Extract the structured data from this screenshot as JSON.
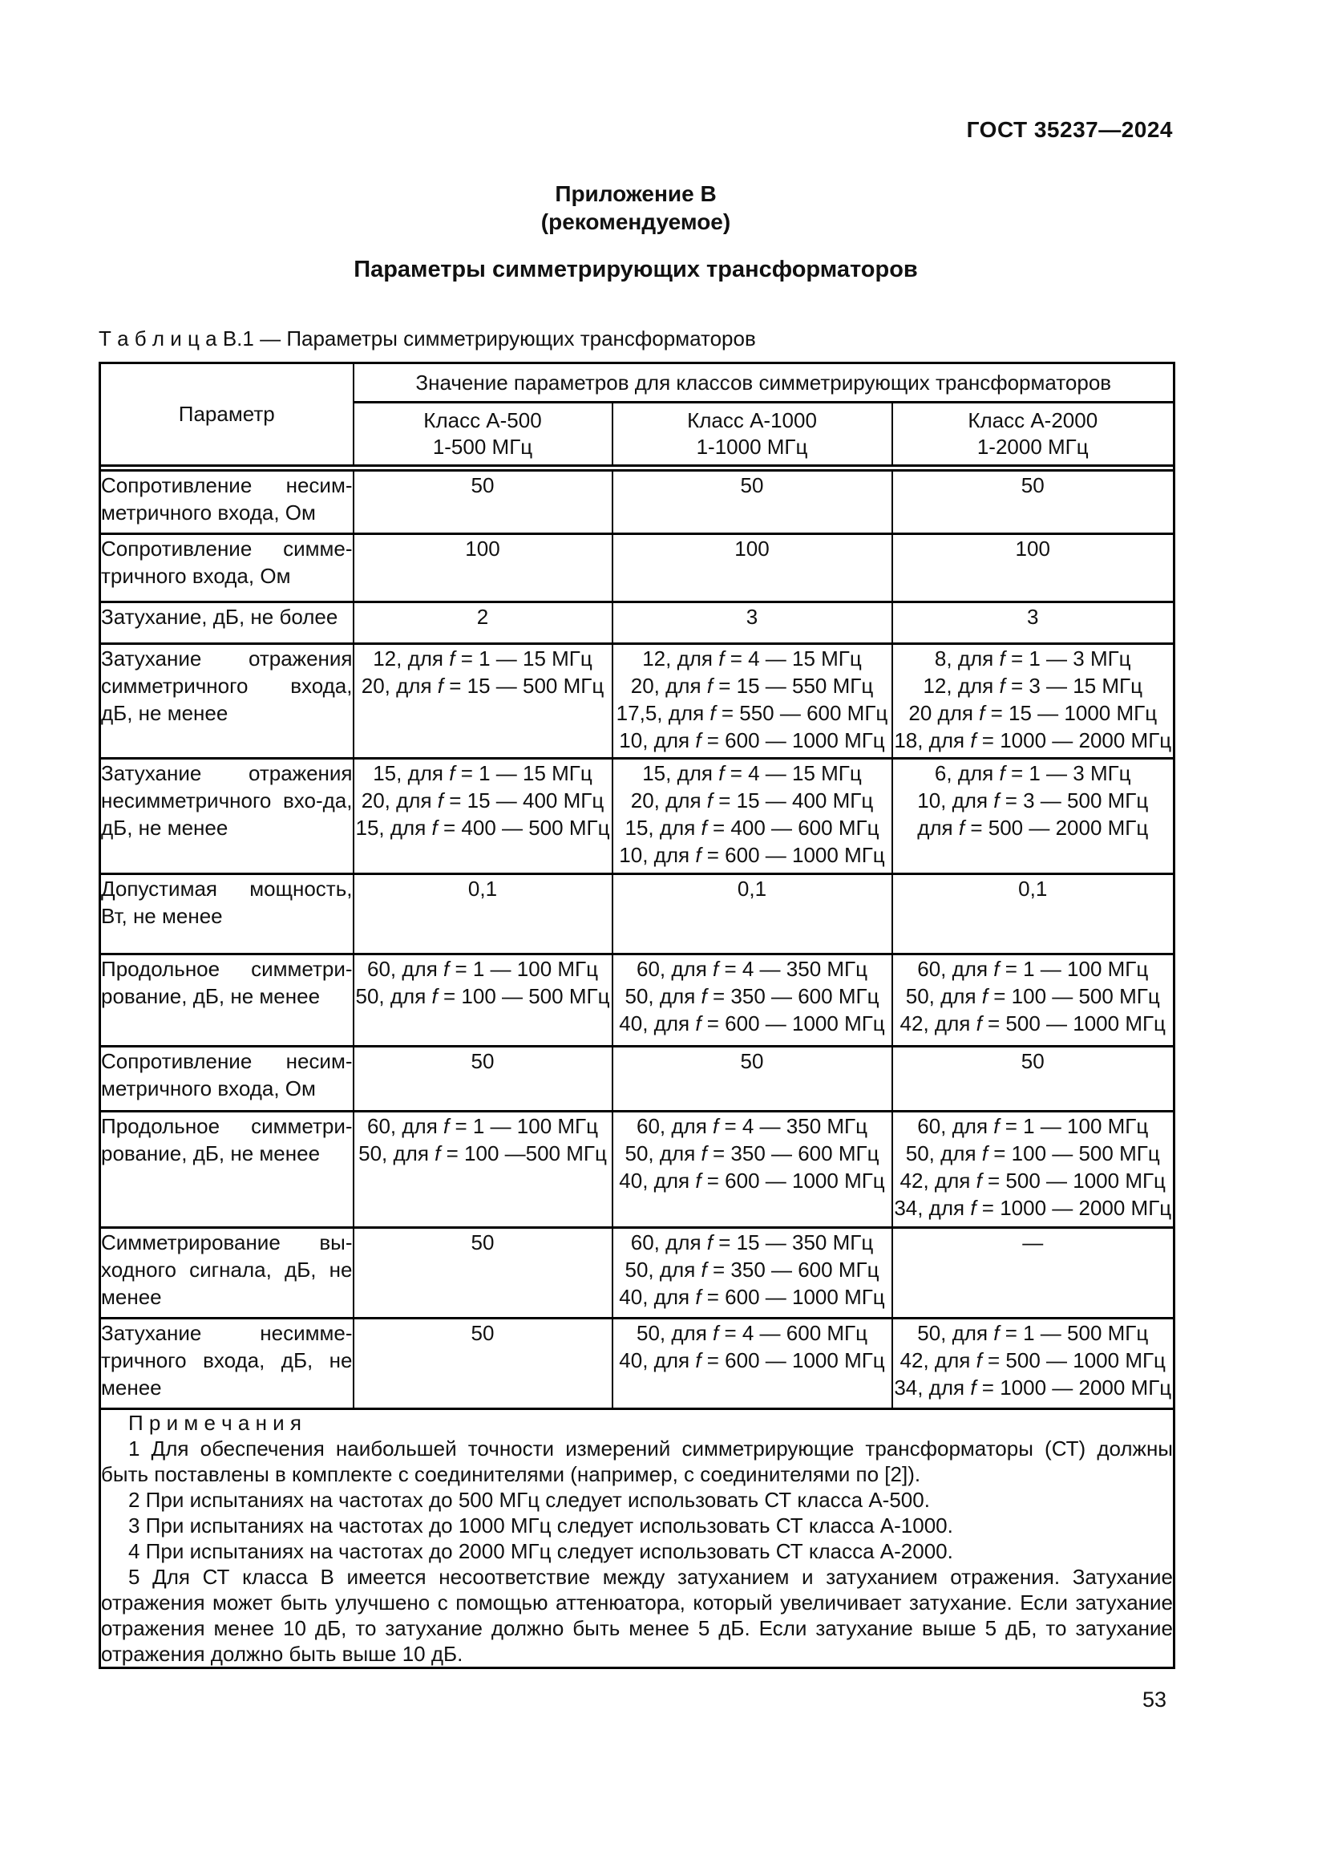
{
  "page": {
    "doc_number": "ГОСТ 35237—2024",
    "page_number": "53"
  },
  "annex": {
    "label": "Приложение В",
    "type": "(рекомендуемое)",
    "title": "Параметры симметрирующих трансформаторов"
  },
  "table": {
    "caption": "Т а б л и ц а   В.1 — Параметры симметрирующих трансформаторов",
    "header": {
      "param": "Параметр",
      "group": "Значение параметров для классов симметрирующих трансформаторов",
      "classes": [
        "Класс А-500\n1-500 МГц",
        "Класс А-1000\n1-1000 МГц",
        "Класс А-2000\n1-2000 МГц"
      ]
    },
    "rows": [
      {
        "param": "Сопротивление несим-метричного входа, Ом",
        "a500": "50",
        "a1000": "50",
        "a2000": "50"
      },
      {
        "param": "Сопротивление симме-тричного входа, Ом",
        "a500": "100",
        "a1000": "100",
        "a2000": "100"
      },
      {
        "param": "Затухание, дБ, не более",
        "a500": "2",
        "a1000": "3",
        "a2000": "3"
      },
      {
        "param": "Затухание отражения симметричного входа, дБ, не менее",
        "a500": "12, для f = 1 — 15 МГц\n20, для f = 15 — 500 МГц",
        "a1000": "12, для f = 4 — 15 МГц\n20, для f = 15 — 550 МГц\n17,5, для f = 550 — 600 МГц\n10, для f = 600 — 1000 МГц",
        "a2000": "8, для f = 1 — 3 МГц\n12, для f = 3 — 15 МГц\n20 для f = 15 — 1000 МГц\n18, для f = 1000 — 2000 МГц"
      },
      {
        "param": "Затухание отражения несимметричного вхо-да, дБ, не менее",
        "a500": "15, для f = 1 — 15 МГц\n20, для f = 15 — 400 МГц\n15, для f = 400 — 500 МГц",
        "a1000": "15, для f = 4 — 15 МГц\n20, для f = 15 — 400 МГц\n15, для f = 400 — 600 МГц\n10, для f = 600 — 1000 МГц",
        "a2000": "6, для f = 1 — 3 МГц\n10, для f = 3 — 500 МГц\nдля f = 500 — 2000 МГц"
      },
      {
        "param": "Допустимая мощность, Вт, не менее",
        "a500": "0,1",
        "a1000": "0,1",
        "a2000": "0,1"
      },
      {
        "param": "Продольное симметри-рование, дБ, не менее",
        "a500": "60, для f = 1 — 100 МГц\n50, для f = 100 — 500 МГц",
        "a1000": "60, для f = 4 — 350 МГц\n50, для f = 350 — 600 МГц\n40, для f = 600 — 1000 МГц",
        "a2000": "60, для f = 1 — 100 МГц\n50, для f = 100 — 500 МГц\n42, для f = 500 — 1000 МГц"
      },
      {
        "param": "Сопротивление несим-метричного входа, Ом",
        "a500": "50",
        "a1000": "50",
        "a2000": "50"
      },
      {
        "param": "Продольное симметри-рование, дБ, не менее",
        "a500": "60, для f = 1 — 100 МГц\n50, для f = 100 —500 МГц",
        "a1000": "60, для f = 4 — 350 МГц\n50, для f = 350 — 600 МГц\n40, для f = 600 — 1000 МГц",
        "a2000": "60, для f = 1 — 100 МГц\n50, для f = 100 — 500 МГц\n42, для f = 500 — 1000 МГц\n34, для f = 1000 — 2000 МГц"
      },
      {
        "param": "Симметрирование вы-ходного сигнала, дБ, не менее",
        "a500": "50",
        "a1000": "60, для f = 15 — 350 МГц\n50, для f = 350 — 600 МГц\n40, для f = 600 — 1000 МГц",
        "a2000": "—"
      },
      {
        "param": "Затухание несимме-тричного входа, дБ, не менее",
        "a500": "50",
        "a1000": "50, для f = 4 — 600 МГц\n40, для f = 600 — 1000 МГц",
        "a2000": "50, для f = 1 — 500 МГц\n42, для f = 500 — 1000 МГц\n34, для f = 1000 — 2000 МГц"
      }
    ],
    "notes": {
      "heading": "П р и м е ч а н и я",
      "items": [
        "1 Для обеспечения наибольшей точности измерений симметрирующие трансформаторы (СТ) должны быть поставлены в комплекте с соединителями (например, с соединителями по [2]).",
        "2 При испытаниях на частотах до 500 МГц следует использовать СТ класса А-500.",
        "3 При испытаниях на частотах до 1000 МГц следует использовать СТ класса А-1000.",
        "4 При испытаниях на частотах до 2000 МГц следует использовать СТ класса А-2000.",
        "5 Для СТ класса В имеется несоответствие между затуханием и затуханием отражения. Затухание отражения может быть улучшено с помощью аттенюатора, который увеличивает затухание. Если затухание отражения менее 10 дБ, то затухание должно быть менее 5 дБ. Если затухание выше 5 дБ, то затухание отражения должно быть выше 10 дБ."
      ]
    }
  }
}
